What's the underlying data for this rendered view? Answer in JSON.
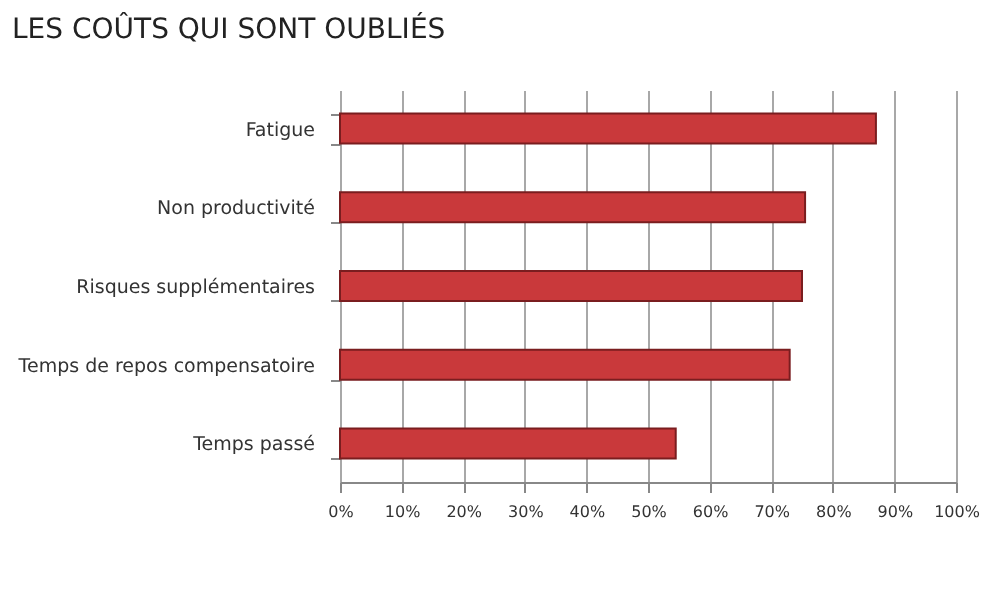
{
  "chart_data": {
    "type": "bar",
    "orientation": "horizontal",
    "title": "LES COÛTS QUI SONT OUBLIÉS",
    "categories": [
      "Fatigue",
      "Non productivité",
      "Risques supplémentaires",
      "Temps de repos compensatoire",
      "Temps passé"
    ],
    "values": [
      87,
      75.5,
      75,
      73,
      54.5
    ],
    "color": "#c9393b",
    "xlim": [
      0,
      100
    ],
    "xticks": [
      {
        "value": 0,
        "label": "0%"
      },
      {
        "value": 10,
        "label": "10%"
      },
      {
        "value": 20,
        "label": "20%"
      },
      {
        "value": 30,
        "label": "30%"
      },
      {
        "value": 40,
        "label": "40%"
      },
      {
        "value": 50,
        "label": "50%"
      },
      {
        "value": 60,
        "label": "60%"
      },
      {
        "value": 70,
        "label": "70%"
      },
      {
        "value": 80,
        "label": "80%"
      },
      {
        "value": 90,
        "label": "90%"
      },
      {
        "value": 100,
        "label": "100%"
      }
    ],
    "grid": "x"
  }
}
